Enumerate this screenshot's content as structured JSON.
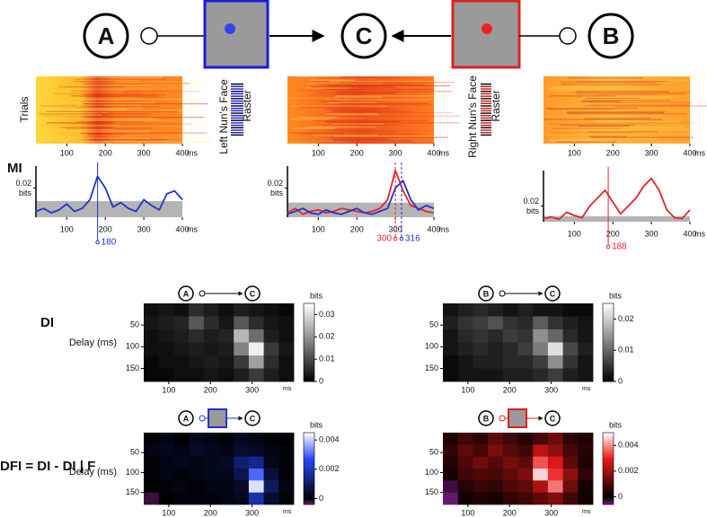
{
  "diagram": {
    "nodes": [
      "A",
      "C",
      "B"
    ]
  },
  "raster_panels": {
    "y_label": "Trials",
    "x_unit": "ms",
    "xlim": [
      20,
      400
    ],
    "xticks": [
      100,
      200,
      300,
      400
    ],
    "left_label": [
      "Left Nun's Face",
      "Raster"
    ],
    "right_label": [
      "Right Nun's Face",
      "Raster"
    ]
  },
  "chart_data": [
    {
      "type": "line",
      "title": "MI",
      "y_label": "bits",
      "x_unit": "ms",
      "x": [
        20,
        40,
        60,
        80,
        100,
        120,
        140,
        160,
        180,
        200,
        220,
        240,
        260,
        280,
        300,
        320,
        340,
        360,
        380,
        400
      ],
      "series": [
        {
          "color": "#2233cc",
          "values": [
            0.004,
            0.006,
            0.003,
            0.005,
            0.009,
            0.004,
            0.006,
            0.012,
            0.028,
            0.02,
            0.007,
            0.01,
            0.006,
            0.004,
            0.012,
            0.008,
            0.005,
            0.016,
            0.018,
            0.012
          ]
        }
      ],
      "threshold": 0.011,
      "xlim": [
        20,
        400
      ],
      "ylim": [
        0,
        0.035
      ],
      "xticks": [
        100,
        200,
        300,
        400
      ],
      "yticks": [
        0.02
      ],
      "annotations": [
        {
          "x": 180,
          "label": "180",
          "color": "#2233cc"
        }
      ]
    },
    {
      "type": "line",
      "y_label": "bits",
      "x_unit": "ms",
      "x": [
        20,
        40,
        60,
        80,
        100,
        120,
        140,
        160,
        180,
        200,
        220,
        240,
        260,
        280,
        300,
        320,
        340,
        360,
        380,
        400
      ],
      "series": [
        {
          "color": "#e8222a",
          "values": [
            0.003,
            0.006,
            0.002,
            0.004,
            0.005,
            0.003,
            0.004,
            0.006,
            0.005,
            0.004,
            0.003,
            0.004,
            0.006,
            0.012,
            0.032,
            0.018,
            0.008,
            0.006,
            0.004,
            0.003
          ]
        },
        {
          "color": "#2233cc",
          "values": [
            0.002,
            0.004,
            0.006,
            0.003,
            0.002,
            0.005,
            0.003,
            0.002,
            0.004,
            0.006,
            0.003,
            0.002,
            0.004,
            0.006,
            0.02,
            0.025,
            0.012,
            0.005,
            0.008,
            0.006
          ]
        }
      ],
      "threshold": 0.01,
      "xlim": [
        20,
        400
      ],
      "ylim": [
        0,
        0.035
      ],
      "xticks": [
        100,
        200,
        300,
        400
      ],
      "yticks": [
        0.02
      ],
      "annotations": [
        {
          "x": 300,
          "label": "300",
          "color": "#e8222a"
        },
        {
          "x": 316,
          "label": "316",
          "color": "#2233cc"
        }
      ]
    },
    {
      "type": "line",
      "y_label": "bits",
      "x_unit": "ms",
      "x": [
        20,
        40,
        60,
        80,
        100,
        120,
        140,
        160,
        180,
        200,
        220,
        240,
        260,
        280,
        300,
        320,
        340,
        360,
        380,
        400
      ],
      "series": [
        {
          "color": "#e8222a",
          "values": [
            0.004,
            0.006,
            0.003,
            0.012,
            0.008,
            0.005,
            0.02,
            0.03,
            0.04,
            0.025,
            0.01,
            0.02,
            0.03,
            0.045,
            0.055,
            0.04,
            0.015,
            0.005,
            0.004,
            0.015
          ]
        }
      ],
      "threshold": 0.007,
      "xlim": [
        20,
        400
      ],
      "ylim": [
        0,
        0.065
      ],
      "xticks": [
        100,
        200,
        300,
        400
      ],
      "yticks": [
        0.02
      ],
      "annotations": [
        {
          "x": 188,
          "label": "188",
          "color": "#e8222a"
        }
      ]
    },
    {
      "type": "heatmap",
      "title": "DI",
      "y_label": "Delay (ms)",
      "x_unit": "ms",
      "c_label": "bits",
      "colormap": "gray",
      "xlim": [
        40,
        400
      ],
      "ylim": [
        0,
        180
      ],
      "xticks": [
        100,
        200,
        300
      ],
      "yticks": [
        50,
        100,
        150
      ],
      "clim": [
        0,
        0.035
      ],
      "cticks": [
        0,
        0.01,
        0.02,
        0.03
      ],
      "values": [
        [
          0.002,
          0.003,
          0.002,
          0.006,
          0.004,
          0.002,
          0.004,
          0.003,
          0.002,
          0.001
        ],
        [
          0.003,
          0.004,
          0.005,
          0.012,
          0.006,
          0.003,
          0.012,
          0.006,
          0.003,
          0.002
        ],
        [
          0.002,
          0.003,
          0.004,
          0.006,
          0.004,
          0.005,
          0.025,
          0.015,
          0.004,
          0.002
        ],
        [
          0.002,
          0.002,
          0.003,
          0.004,
          0.003,
          0.004,
          0.018,
          0.033,
          0.008,
          0.003
        ],
        [
          0.001,
          0.002,
          0.002,
          0.003,
          0.004,
          0.003,
          0.008,
          0.022,
          0.006,
          0.002
        ],
        [
          0.001,
          0.001,
          0.002,
          0.002,
          0.003,
          0.002,
          0.004,
          0.008,
          0.004,
          0.002
        ]
      ]
    },
    {
      "type": "heatmap",
      "x_unit": "ms",
      "c_label": "bits",
      "colormap": "gray",
      "xlim": [
        40,
        400
      ],
      "ylim": [
        0,
        180
      ],
      "xticks": [
        100,
        200,
        300
      ],
      "yticks": [
        50,
        100,
        150
      ],
      "clim": [
        0,
        0.025
      ],
      "cticks": [
        0,
        0.01,
        0.02
      ],
      "values": [
        [
          0.002,
          0.003,
          0.004,
          0.003,
          0.002,
          0.003,
          0.002,
          0.002,
          0.001,
          0.001
        ],
        [
          0.003,
          0.005,
          0.006,
          0.008,
          0.005,
          0.004,
          0.009,
          0.005,
          0.003,
          0.002
        ],
        [
          0.002,
          0.004,
          0.005,
          0.004,
          0.006,
          0.005,
          0.014,
          0.01,
          0.004,
          0.002
        ],
        [
          0.002,
          0.003,
          0.004,
          0.003,
          0.004,
          0.006,
          0.012,
          0.022,
          0.007,
          0.003
        ],
        [
          0.001,
          0.002,
          0.003,
          0.003,
          0.004,
          0.004,
          0.006,
          0.014,
          0.005,
          0.002
        ],
        [
          0.001,
          0.002,
          0.002,
          0.002,
          0.003,
          0.003,
          0.004,
          0.006,
          0.003,
          0.002
        ]
      ]
    },
    {
      "type": "heatmap",
      "title": "DFI = DI - DI | F",
      "y_label": "Delay (ms)",
      "x_unit": "ms",
      "c_label": "bits",
      "colormap": "blue",
      "xlim": [
        40,
        400
      ],
      "ylim": [
        0,
        180
      ],
      "xticks": [
        100,
        200,
        300
      ],
      "yticks": [
        50,
        100,
        150
      ],
      "clim": [
        -0.0004,
        0.0045
      ],
      "cticks": [
        0,
        0.002,
        0.004
      ],
      "values": [
        [
          0.0001,
          0.0002,
          0,
          0.0003,
          0.0002,
          0.0001,
          0.0003,
          0.0002,
          0.0001,
          0
        ],
        [
          0.0002,
          0.0003,
          0.0002,
          0.0004,
          0.0003,
          0.0002,
          0.0005,
          0.0004,
          0.0002,
          0.0001
        ],
        [
          0.0001,
          0.0002,
          0.0003,
          0.0002,
          0.0003,
          0.0004,
          0.0012,
          0.0015,
          0.0003,
          0.0001
        ],
        [
          0.0001,
          0.0002,
          0.0001,
          0.0002,
          0.0003,
          0.0003,
          0.0008,
          0.003,
          0.0006,
          0.0001
        ],
        [
          0,
          0.0001,
          0.0002,
          0.0001,
          0.0002,
          0.0002,
          0.0004,
          0.0042,
          0.001,
          0.0002
        ],
        [
          -0.0002,
          0,
          0.0001,
          0.0001,
          0.0001,
          0.0002,
          0.0003,
          0.0018,
          0.0005,
          0.0001
        ]
      ]
    },
    {
      "type": "heatmap",
      "x_unit": "ms",
      "c_label": "bits",
      "colormap": "red",
      "xlim": [
        40,
        400
      ],
      "ylim": [
        0,
        180
      ],
      "xticks": [
        100,
        200,
        300
      ],
      "yticks": [
        50,
        100,
        150
      ],
      "clim": [
        -0.0006,
        0.005
      ],
      "cticks": [
        0,
        0.002,
        0.004
      ],
      "values": [
        [
          0.0004,
          0.0008,
          0.0006,
          0.0012,
          0.0008,
          0.0005,
          0.0009,
          0.0014,
          0.0006,
          0.0004
        ],
        [
          0.0006,
          0.0012,
          0.0009,
          0.0016,
          0.0011,
          0.0008,
          0.0024,
          0.0018,
          0.0009,
          0.0005
        ],
        [
          0.0005,
          0.001,
          0.0014,
          0.0011,
          0.0015,
          0.0012,
          0.0035,
          0.0028,
          0.0012,
          0.0004
        ],
        [
          0.0003,
          0.0008,
          0.001,
          0.0009,
          0.0012,
          0.0016,
          0.0046,
          0.0032,
          0.0018,
          0.0006
        ],
        [
          -0.0003,
          0.0005,
          0.0007,
          0.0006,
          0.001,
          0.0012,
          0.0022,
          0.0038,
          0.0014,
          0.0003
        ],
        [
          -0.0005,
          0.0002,
          0.0004,
          0.0003,
          0.0006,
          0.0008,
          0.0012,
          0.0016,
          0.0008,
          0.0002
        ]
      ]
    }
  ]
}
